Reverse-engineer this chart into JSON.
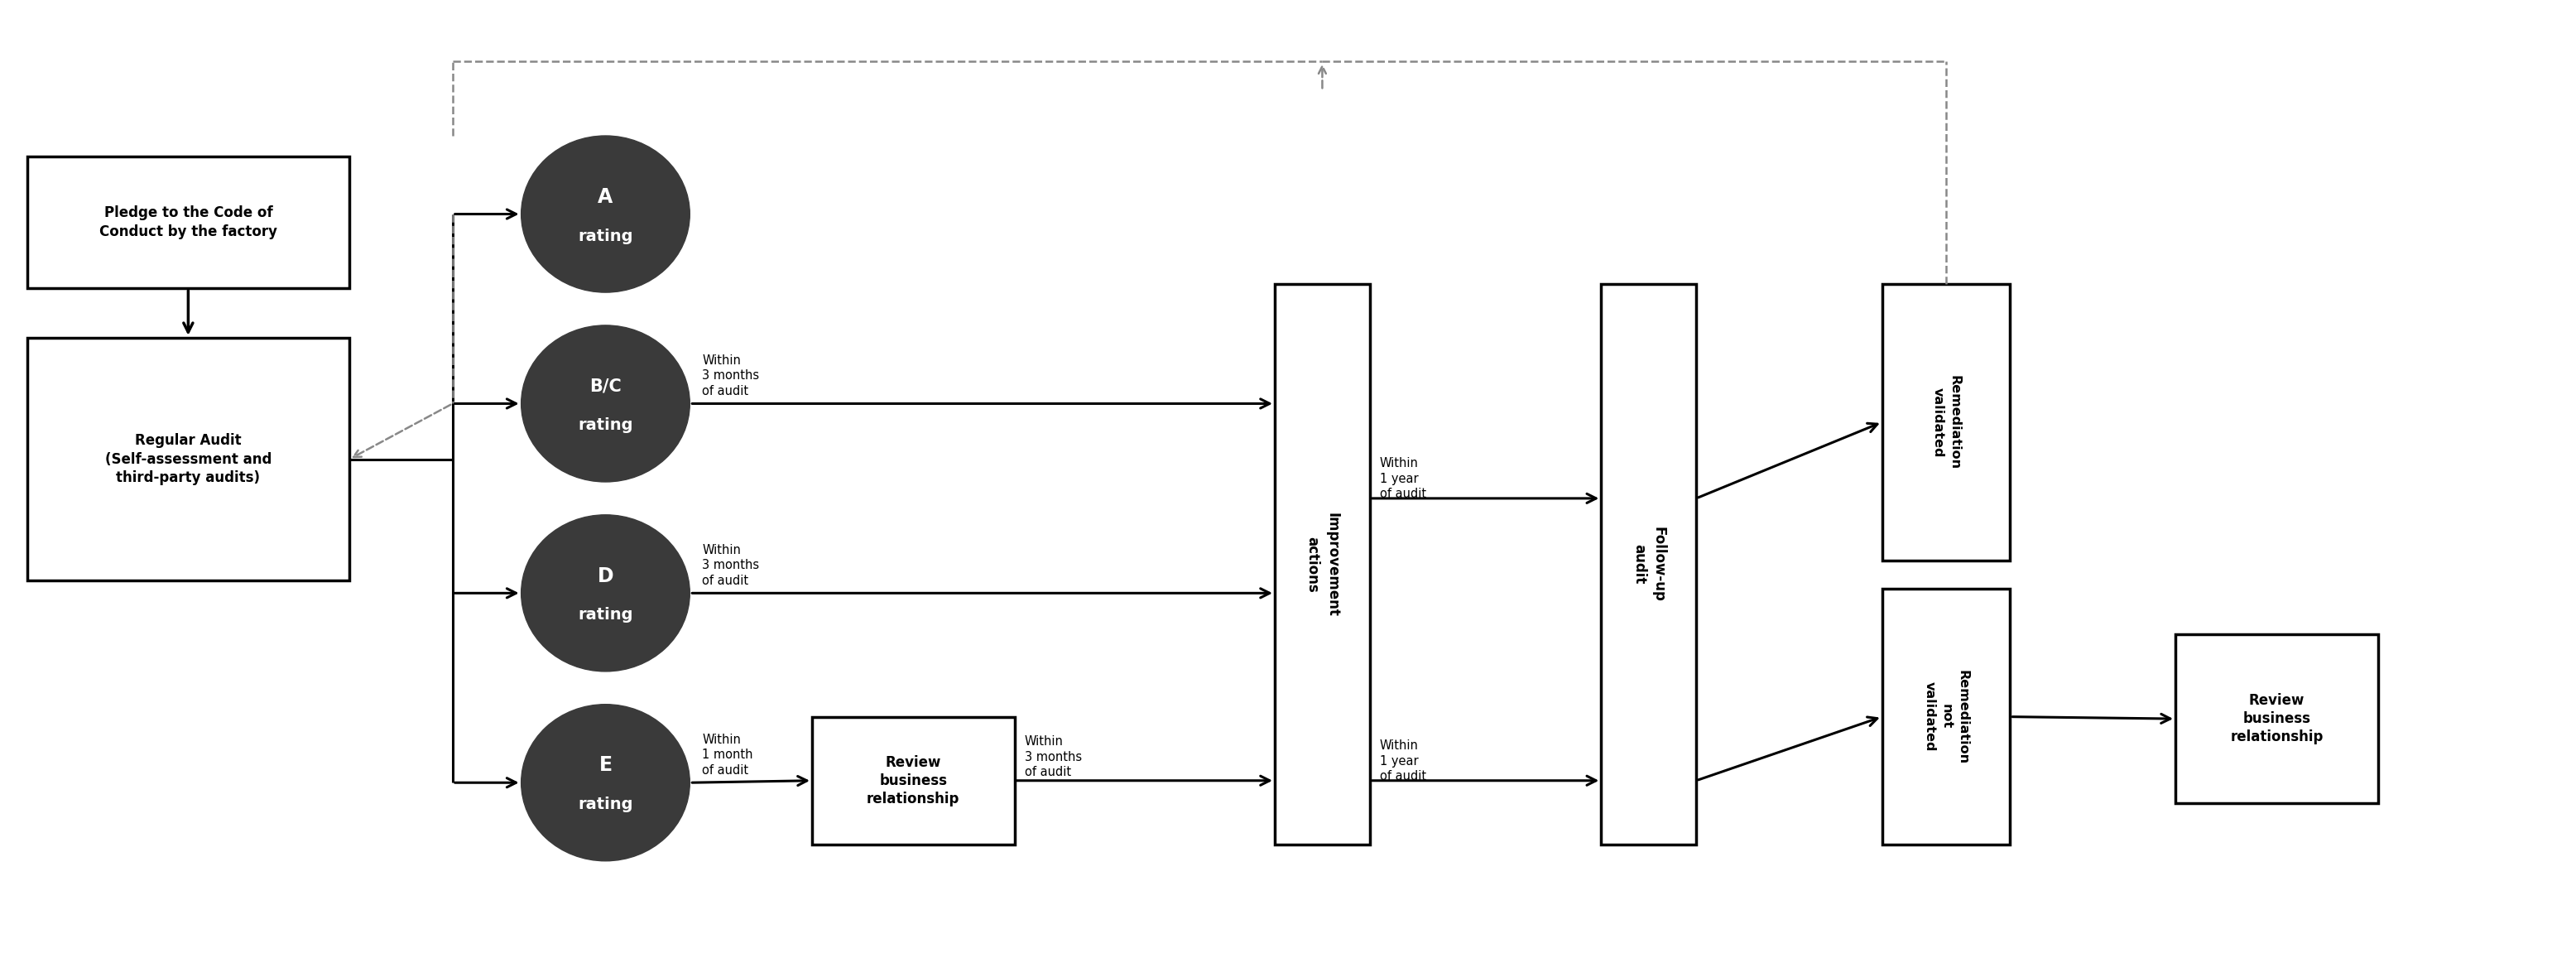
{
  "bg_color": "#ffffff",
  "circle_color": "#3a3a3a",
  "circle_text_color": "#ffffff",
  "box_edge_color": "#000000",
  "arrow_color": "#000000",
  "dashed_color": "#888888",
  "boxes": {
    "pledge": "Pledge to the Code of\nConduct by the factory",
    "audit": "Regular Audit\n(Self-assessment and\nthird-party audits)",
    "improvement": "Improvement\nactions",
    "follow_up": "Follow-up\naudit",
    "review_biz_e": "Review\nbusiness\nrelationship",
    "remediation_validated": "Remediation\nvalidated",
    "remediation_not_validated": "Remediation\nnot\nvalidated",
    "review_biz_final": "Review\nbusiness\nrelationship"
  },
  "timing": {
    "bc_to_imp": "Within\n3 months\nof audit",
    "d_to_imp": "Within\n3 months\nof audit",
    "e_to_rbr": "Within\n1 month\nof audit",
    "rbr_to_imp": "Within\n3 months\nof audit",
    "bc_d_followup": "Within\n1 year\nof audit",
    "e_followup": "Within\n1 year\nof audit"
  }
}
